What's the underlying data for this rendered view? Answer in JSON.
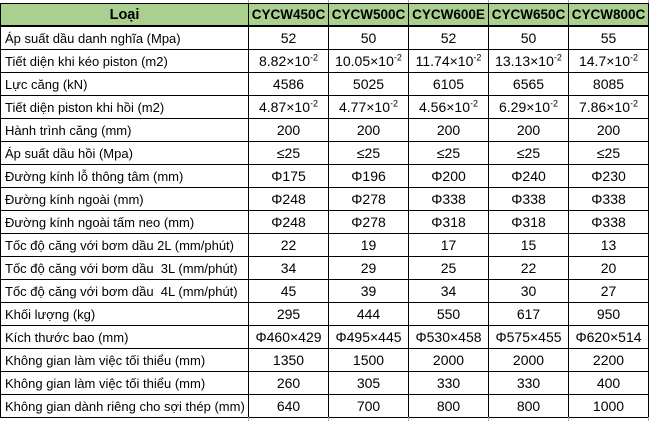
{
  "colors": {
    "header_bg": "#A9D08E",
    "border": "#000000",
    "gridline_stub": "#ABABAB",
    "text": "#000000"
  },
  "table": {
    "header": {
      "label_col": "Loại",
      "models": [
        "CYCW450C",
        "CYCW500C",
        "CYCW600E",
        "CYCW650C",
        "CYCW800C"
      ]
    },
    "rows": [
      {
        "label": "Áp suất dầu danh nghĩa (Mpa)",
        "values": [
          "52",
          "50",
          "52",
          "50",
          "55"
        ]
      },
      {
        "label": "Tiết diện khi kéo piston (m2)",
        "values": [
          "8.82×10^-2",
          "10.05×10^-2",
          "11.74×10^-2",
          "13.13×10^-2",
          "14.7×10^-2"
        ]
      },
      {
        "label": "Lực căng (kN)",
        "values": [
          "4586",
          "5025",
          "6105",
          "6565",
          "8085"
        ]
      },
      {
        "label": "Tiết diện piston khi hồi (m2)",
        "values": [
          "4.87×10^-2",
          "4.77×10^-2",
          "4.56×10^-2",
          "6.29×10^-2",
          "7.86×10^-2"
        ]
      },
      {
        "label": "Hành trình căng (mm)",
        "values": [
          "200",
          "200",
          "200",
          "200",
          "200"
        ]
      },
      {
        "label": "Áp suất dầu hồi (Mpa)",
        "values": [
          "≤25",
          "≤25",
          "≤25",
          "≤25",
          "≤25"
        ]
      },
      {
        "label": "Đường kính lỗ thông tâm (mm)",
        "values": [
          "Φ175",
          "Φ196",
          "Φ200",
          "Φ240",
          "Φ230"
        ]
      },
      {
        "label": "Đường kính ngoài (mm)",
        "values": [
          "Φ248",
          "Φ278",
          "Φ338",
          "Φ338",
          "Φ338"
        ]
      },
      {
        "label": "Đường kính ngoài tấm neo (mm)",
        "values": [
          "Φ248",
          "Φ278",
          "Φ318",
          "Φ318",
          "Φ338"
        ]
      },
      {
        "label": "Tốc độ căng với bơm dầu 2L (mm/phút)",
        "values": [
          "22",
          "19",
          "17",
          "15",
          "13"
        ]
      },
      {
        "label": "Tốc độ căng với bơm dầu  3L (mm/phút)",
        "values": [
          "34",
          "29",
          "25",
          "22",
          "20"
        ]
      },
      {
        "label": "Tốc độ căng với bơm dầu  4L (mm/phút)",
        "values": [
          "45",
          "39",
          "34",
          "30",
          "27"
        ]
      },
      {
        "label": "Khối lượng (kg)",
        "values": [
          "295",
          "444",
          "550",
          "617",
          "950"
        ]
      },
      {
        "label": "Kích thước bao (mm)",
        "values": [
          "Φ460×429",
          "Φ495×445",
          "Φ530×458",
          "Φ575×455",
          "Φ620×514"
        ]
      },
      {
        "label": "Không gian làm việc tối thiểu (mm)",
        "values": [
          "1350",
          "1500",
          "2000",
          "2000",
          "2200"
        ]
      },
      {
        "label": "Không gian làm việc tối thiểu (mm)",
        "values": [
          "260",
          "305",
          "330",
          "330",
          "400"
        ]
      },
      {
        "label": "Không gian dành riêng cho sợi thép (mm)",
        "values": [
          "640",
          "700",
          "800",
          "800",
          "1000"
        ]
      }
    ]
  }
}
